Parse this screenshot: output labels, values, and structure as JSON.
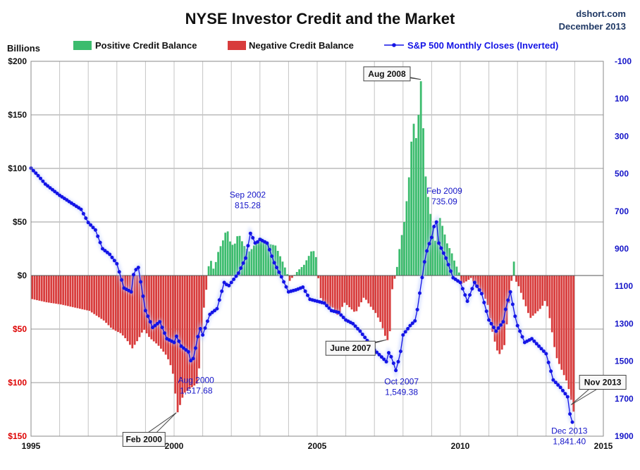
{
  "chart_data": {
    "type": "bar",
    "title": "NYSE Investor Credit and the Market",
    "source": "dshort.com",
    "date_label": "December 2013",
    "y_left_label": "Billions",
    "y_left_range": [
      -150,
      200
    ],
    "y_left_ticks": [
      {
        "v": 200,
        "label": "$200",
        "neg": false
      },
      {
        "v": 150,
        "label": "$150",
        "neg": false
      },
      {
        "v": 100,
        "label": "$100",
        "neg": false
      },
      {
        "v": 50,
        "label": "$50",
        "neg": false
      },
      {
        "v": 0,
        "label": "$0",
        "neg": false
      },
      {
        "v": -50,
        "label": "$50",
        "neg": true
      },
      {
        "v": -100,
        "label": "$100",
        "neg": true
      },
      {
        "v": -150,
        "label": "$150",
        "neg": true
      }
    ],
    "y_right_range": [
      -100,
      1900
    ],
    "y_right_inverted": true,
    "y_right_ticks": [
      "-100",
      "100",
      "300",
      "500",
      "700",
      "900",
      "1100",
      "1300",
      "1500",
      "1700",
      "1900"
    ],
    "x_range": [
      1995,
      2015
    ],
    "x_ticks": [
      "1995",
      "2000",
      "2005",
      "2010",
      "2015"
    ],
    "colors": {
      "positive": "#3cbc6e",
      "negative": "#d83c3c",
      "sp500": "#1414e6",
      "neg_label": "#dd0000"
    },
    "legend": [
      {
        "label": "Positive Credit Balance",
        "kind": "pos"
      },
      {
        "label": "Negative Credit Balance",
        "kind": "neg"
      },
      {
        "label": "S&P 500 Monthly Closes (Inverted)",
        "kind": "line"
      }
    ],
    "credit_anchors": [
      [
        1995.0,
        -22
      ],
      [
        1995.5,
        -25
      ],
      [
        1996.0,
        -27
      ],
      [
        1996.5,
        -30
      ],
      [
        1997.0,
        -33
      ],
      [
        1997.5,
        -42
      ],
      [
        1997.8,
        -50
      ],
      [
        1998.1,
        -54
      ],
      [
        1998.3,
        -60
      ],
      [
        1998.5,
        -68
      ],
      [
        1998.7,
        -60
      ],
      [
        1998.9,
        -50
      ],
      [
        1999.1,
        -58
      ],
      [
        1999.4,
        -65
      ],
      [
        1999.7,
        -75
      ],
      [
        1999.9,
        -88
      ],
      [
        2000.08,
        -128
      ],
      [
        2000.3,
        -110
      ],
      [
        2000.55,
        -105
      ],
      [
        2000.8,
        -100
      ],
      [
        2000.95,
        -40
      ],
      [
        2001.1,
        -10
      ],
      [
        2001.2,
        18
      ],
      [
        2001.35,
        5
      ],
      [
        2001.5,
        22
      ],
      [
        2001.7,
        35
      ],
      [
        2001.8,
        45
      ],
      [
        2001.95,
        28
      ],
      [
        2002.1,
        30
      ],
      [
        2002.2,
        40
      ],
      [
        2002.4,
        28
      ],
      [
        2002.6,
        22
      ],
      [
        2002.8,
        30
      ],
      [
        2003.0,
        35
      ],
      [
        2003.2,
        30
      ],
      [
        2003.5,
        28
      ],
      [
        2003.8,
        10
      ],
      [
        2004.0,
        -5
      ],
      [
        2004.3,
        5
      ],
      [
        2004.5,
        10
      ],
      [
        2004.7,
        20
      ],
      [
        2004.8,
        25
      ],
      [
        2004.95,
        15
      ],
      [
        2005.05,
        -20
      ],
      [
        2005.3,
        -28
      ],
      [
        2005.5,
        -30
      ],
      [
        2005.7,
        -38
      ],
      [
        2005.9,
        -25
      ],
      [
        2006.1,
        -30
      ],
      [
        2006.3,
        -35
      ],
      [
        2006.6,
        -20
      ],
      [
        2006.8,
        -28
      ],
      [
        2007.0,
        -35
      ],
      [
        2007.2,
        -45
      ],
      [
        2007.4,
        -62
      ],
      [
        2007.5,
        -52
      ],
      [
        2007.6,
        -5
      ],
      [
        2007.7,
        -2
      ],
      [
        2007.75,
        8
      ],
      [
        2007.85,
        28
      ],
      [
        2008.0,
        50
      ],
      [
        2008.15,
        85
      ],
      [
        2008.25,
        125
      ],
      [
        2008.35,
        145
      ],
      [
        2008.45,
        120
      ],
      [
        2008.55,
        180
      ],
      [
        2008.62,
        183
      ],
      [
        2008.7,
        105
      ],
      [
        2008.8,
        80
      ],
      [
        2008.9,
        60
      ],
      [
        2009.0,
        45
      ],
      [
        2009.1,
        30
      ],
      [
        2009.2,
        58
      ],
      [
        2009.35,
        45
      ],
      [
        2009.5,
        30
      ],
      [
        2009.65,
        22
      ],
      [
        2009.8,
        10
      ],
      [
        2009.9,
        5
      ],
      [
        2010.0,
        -8
      ],
      [
        2010.2,
        -5
      ],
      [
        2010.35,
        -2
      ],
      [
        2010.5,
        -10
      ],
      [
        2010.7,
        -15
      ],
      [
        2010.9,
        -25
      ],
      [
        2011.1,
        -55
      ],
      [
        2011.3,
        -75
      ],
      [
        2011.5,
        -65
      ],
      [
        2011.65,
        -30
      ],
      [
        2011.75,
        -5
      ],
      [
        2011.8,
        22
      ],
      [
        2011.9,
        -5
      ],
      [
        2012.0,
        -10
      ],
      [
        2012.2,
        -25
      ],
      [
        2012.4,
        -40
      ],
      [
        2012.6,
        -35
      ],
      [
        2012.8,
        -30
      ],
      [
        2012.95,
        -22
      ],
      [
        2013.1,
        -42
      ],
      [
        2013.3,
        -75
      ],
      [
        2013.5,
        -88
      ],
      [
        2013.7,
        -100
      ],
      [
        2013.85,
        -118
      ],
      [
        2013.96,
        -133
      ]
    ],
    "sp500_anchors": [
      [
        1995.0,
        470
      ],
      [
        1995.25,
        510
      ],
      [
        1995.5,
        555
      ],
      [
        1995.75,
        585
      ],
      [
        1996.0,
        615
      ],
      [
        1996.25,
        640
      ],
      [
        1996.5,
        665
      ],
      [
        1996.75,
        690
      ],
      [
        1997.0,
        760
      ],
      [
        1997.25,
        800
      ],
      [
        1997.5,
        900
      ],
      [
        1997.75,
        930
      ],
      [
        1998.0,
        980
      ],
      [
        1998.25,
        1110
      ],
      [
        1998.5,
        1130
      ],
      [
        1998.6,
        1020
      ],
      [
        1998.75,
        1000
      ],
      [
        1999.0,
        1230
      ],
      [
        1999.25,
        1320
      ],
      [
        1999.5,
        1290
      ],
      [
        1999.75,
        1380
      ],
      [
        2000.0,
        1400
      ],
      [
        2000.08,
        1366
      ],
      [
        2000.25,
        1420
      ],
      [
        2000.5,
        1450
      ],
      [
        2000.62,
        1517.68
      ],
      [
        2000.75,
        1430
      ],
      [
        2000.9,
        1320
      ],
      [
        2001.0,
        1360
      ],
      [
        2001.25,
        1250
      ],
      [
        2001.5,
        1220
      ],
      [
        2001.75,
        1080
      ],
      [
        2001.9,
        1100
      ],
      [
        2002.25,
        1030
      ],
      [
        2002.5,
        950
      ],
      [
        2002.67,
        815.28
      ],
      [
        2002.85,
        875
      ],
      [
        2003.0,
        850
      ],
      [
        2003.25,
        870
      ],
      [
        2003.5,
        975
      ],
      [
        2003.75,
        1050
      ],
      [
        2004.0,
        1130
      ],
      [
        2004.25,
        1120
      ],
      [
        2004.5,
        1105
      ],
      [
        2004.75,
        1170
      ],
      [
        2005.0,
        1180
      ],
      [
        2005.25,
        1190
      ],
      [
        2005.5,
        1230
      ],
      [
        2005.75,
        1240
      ],
      [
        2006.0,
        1280
      ],
      [
        2006.25,
        1300
      ],
      [
        2006.5,
        1340
      ],
      [
        2006.75,
        1390
      ],
      [
        2007.0,
        1440
      ],
      [
        2007.42,
        1503
      ],
      [
        2007.5,
        1455
      ],
      [
        2007.6,
        1480
      ],
      [
        2007.75,
        1549.38
      ],
      [
        2007.9,
        1465
      ],
      [
        2008.0,
        1360
      ],
      [
        2008.25,
        1310
      ],
      [
        2008.45,
        1280
      ],
      [
        2008.55,
        1170
      ],
      [
        2008.62,
        1100
      ],
      [
        2008.75,
        970
      ],
      [
        2008.85,
        900
      ],
      [
        2009.0,
        840
      ],
      [
        2009.15,
        735.09
      ],
      [
        2009.25,
        870
      ],
      [
        2009.5,
        950
      ],
      [
        2009.75,
        1055
      ],
      [
        2010.0,
        1080
      ],
      [
        2010.25,
        1180
      ],
      [
        2010.5,
        1080
      ],
      [
        2010.75,
        1140
      ],
      [
        2011.0,
        1280
      ],
      [
        2011.25,
        1340
      ],
      [
        2011.5,
        1290
      ],
      [
        2011.6,
        1210
      ],
      [
        2011.75,
        1130
      ],
      [
        2011.9,
        1250
      ],
      [
        2012.0,
        1310
      ],
      [
        2012.25,
        1400
      ],
      [
        2012.5,
        1380
      ],
      [
        2012.75,
        1420
      ],
      [
        2013.0,
        1460
      ],
      [
        2013.25,
        1600
      ],
      [
        2013.5,
        1640
      ],
      [
        2013.75,
        1690
      ],
      [
        2013.85,
        1800
      ],
      [
        2013.96,
        1841.4
      ]
    ],
    "annotations": [
      {
        "id": "feb-2000",
        "series": "bar",
        "x": 2000.08,
        "lines": [
          "Feb 2000"
        ],
        "style": "callout"
      },
      {
        "id": "aug-2000",
        "series": "line",
        "x": 2000.62,
        "lines": [
          "Aug 2000",
          "1,517.68"
        ],
        "style": "text"
      },
      {
        "id": "sep-2002",
        "series": "line",
        "x": 2002.67,
        "lines": [
          "Sep 2002",
          "815.28"
        ],
        "style": "text"
      },
      {
        "id": "june-2007",
        "series": "bar",
        "x": 2007.42,
        "lines": [
          "June 2007"
        ],
        "style": "callout"
      },
      {
        "id": "oct-2007",
        "series": "line",
        "x": 2007.75,
        "lines": [
          "Oct 2007",
          "1,549.38"
        ],
        "style": "text"
      },
      {
        "id": "aug-2008",
        "series": "bar",
        "x": 2008.62,
        "lines": [
          "Aug 2008"
        ],
        "style": "callout"
      },
      {
        "id": "feb-2009",
        "series": "line",
        "x": 2009.15,
        "lines": [
          "Feb 2009",
          "735.09"
        ],
        "style": "text"
      },
      {
        "id": "nov-2013",
        "series": "bar",
        "x": 2013.87,
        "lines": [
          "Nov 2013"
        ],
        "style": "callout"
      },
      {
        "id": "dec-2013",
        "series": "line",
        "x": 2013.96,
        "lines": [
          "Dec 2013",
          "1,841.40"
        ],
        "style": "text"
      }
    ]
  }
}
